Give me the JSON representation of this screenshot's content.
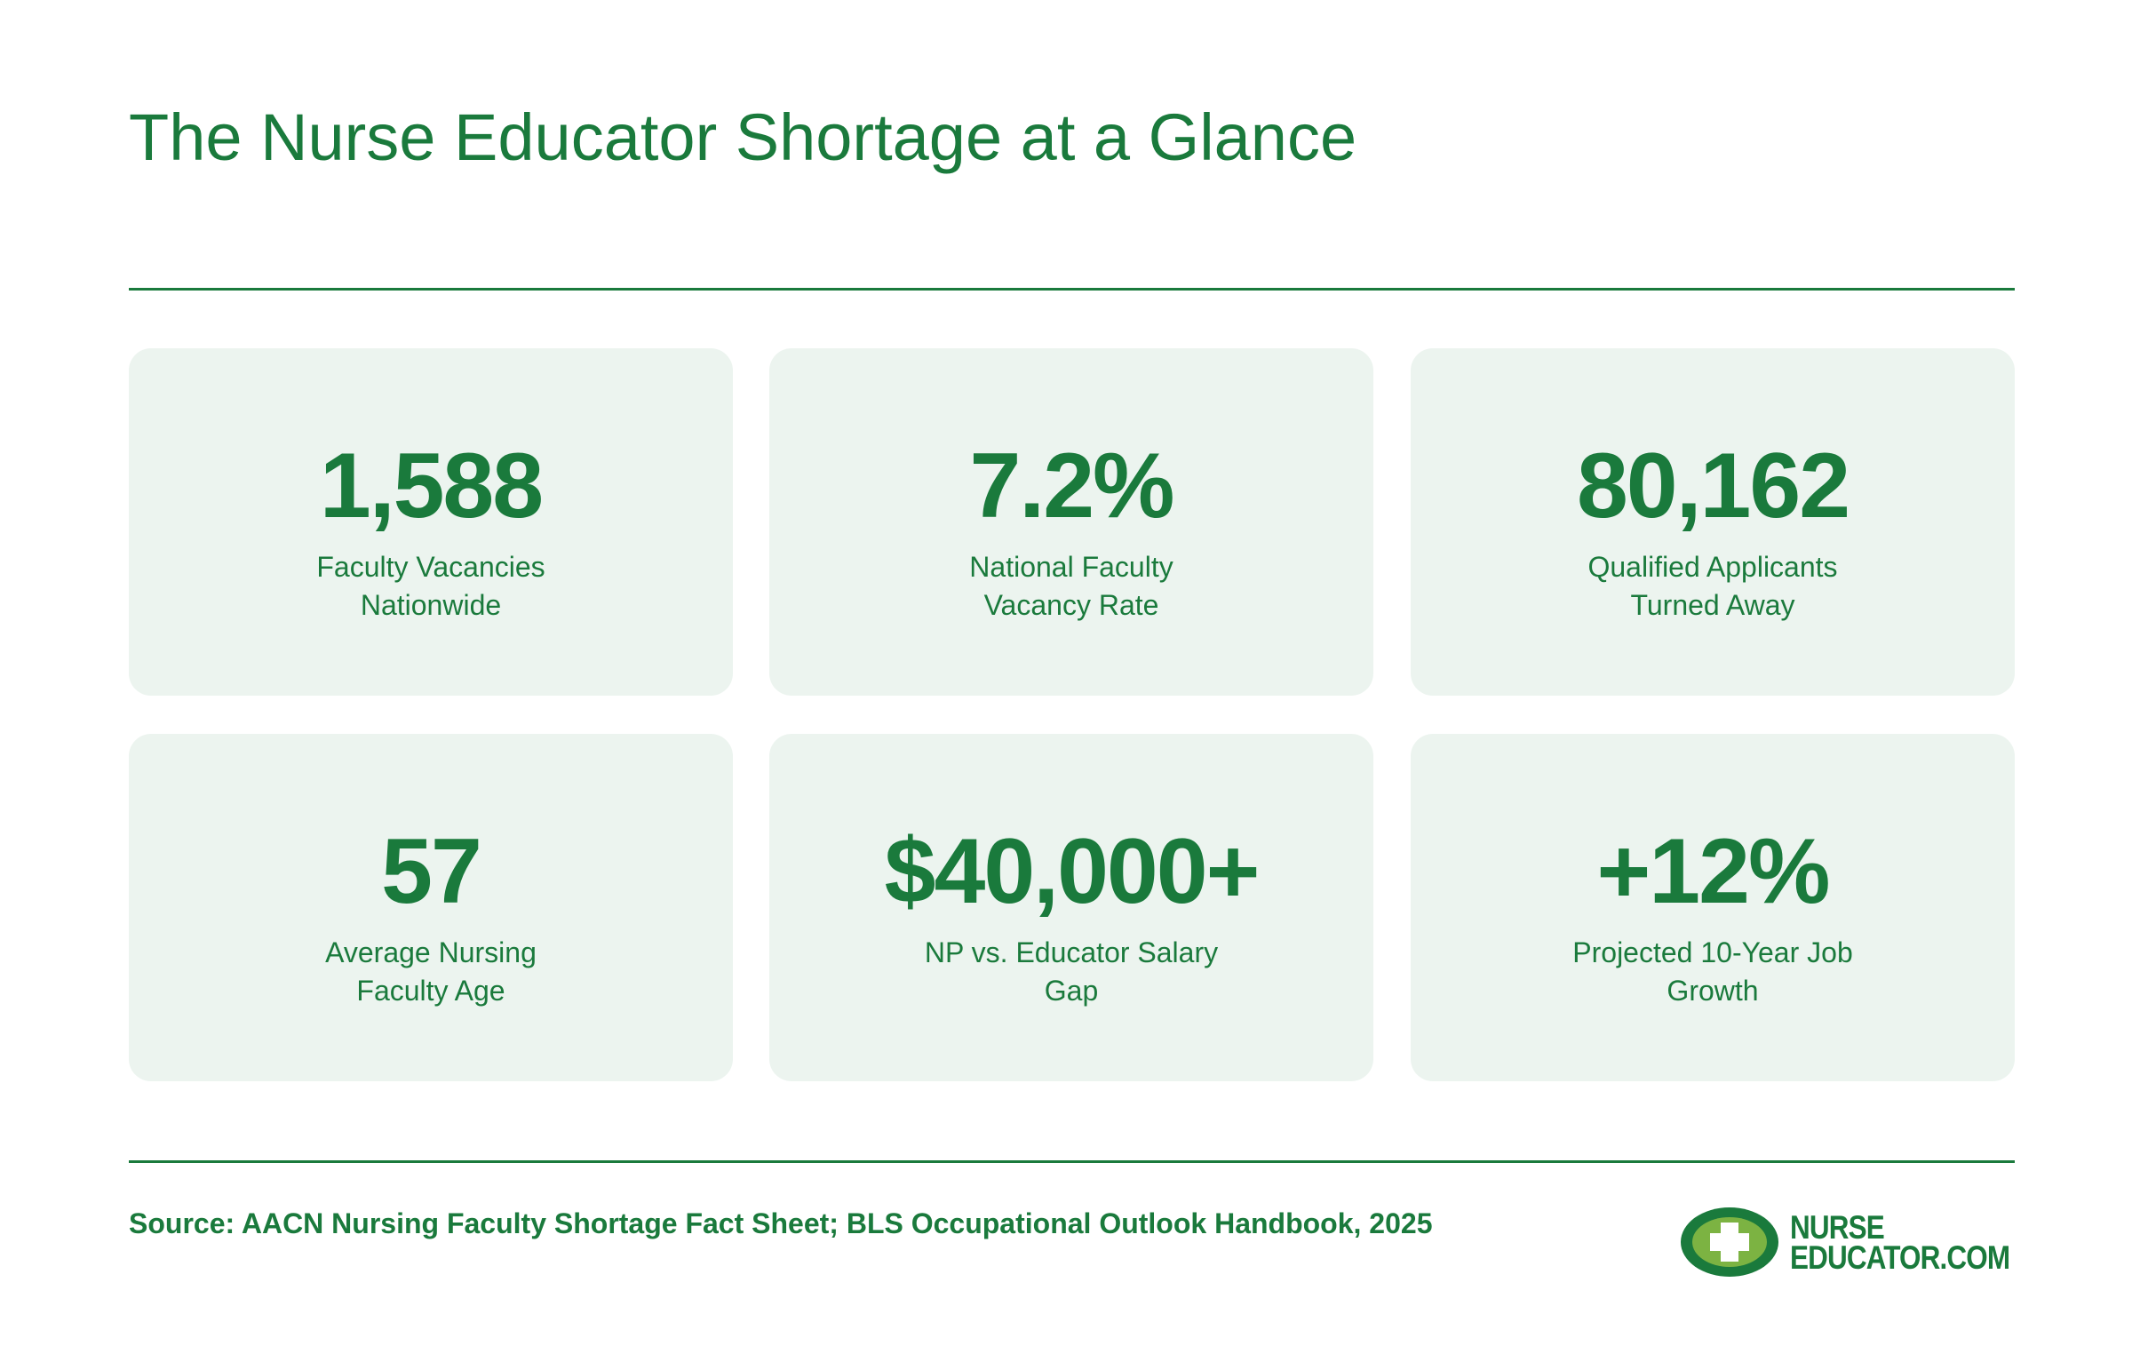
{
  "header": {
    "title": "The Nurse Educator Shortage at a Glance"
  },
  "stats": [
    {
      "value": "1,588",
      "label": [
        "Faculty Vacancies",
        "Nationwide"
      ]
    },
    {
      "value": "7.2%",
      "label": [
        "National Faculty",
        "Vacancy Rate"
      ]
    },
    {
      "value": "80,162",
      "label": [
        "Qualified Applicants",
        "Turned Away"
      ]
    },
    {
      "value": "57",
      "label": [
        "Average Nursing",
        "Faculty Age"
      ]
    },
    {
      "value": "$40,000+",
      "label": [
        "NP vs. Educator Salary",
        "Gap"
      ]
    },
    {
      "value": "+12%",
      "label": [
        "Projected 10-Year Job",
        "Growth"
      ]
    }
  ],
  "footer": {
    "source": "Source: AACN Nursing Faculty Shortage Fact Sheet; BLS Occupational Outlook Handbook, 2025",
    "logo": [
      "NURSE",
      "EDUCATOR.COM"
    ]
  }
}
